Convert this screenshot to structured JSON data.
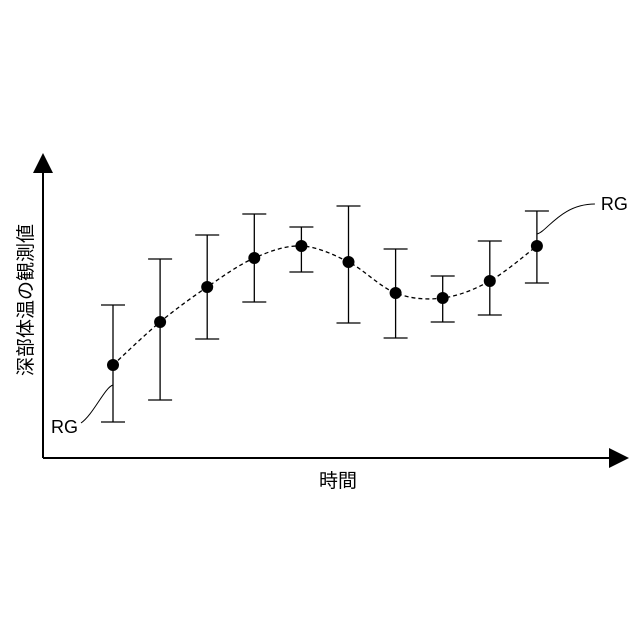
{
  "chart_data": {
    "type": "scatter",
    "xlabel": "時間",
    "ylabel": "深部体温の観測値",
    "grid": false,
    "points": [
      {
        "x": 1,
        "y": 57,
        "lo": 0,
        "hi": 117
      },
      {
        "x": 2,
        "y": 100,
        "lo": 22,
        "hi": 163
      },
      {
        "x": 3,
        "y": 135,
        "lo": 83,
        "hi": 187
      },
      {
        "x": 4,
        "y": 164,
        "lo": 120,
        "hi": 208
      },
      {
        "x": 5,
        "y": 176,
        "lo": 150,
        "hi": 195
      },
      {
        "x": 6,
        "y": 160,
        "lo": 99,
        "hi": 216
      },
      {
        "x": 7,
        "y": 129,
        "lo": 84,
        "hi": 173
      },
      {
        "x": 8,
        "y": 124,
        "lo": 100,
        "hi": 146
      },
      {
        "x": 9,
        "y": 141,
        "lo": 107,
        "hi": 181
      },
      {
        "x": 10,
        "y": 176,
        "lo": 139,
        "hi": 211
      }
    ],
    "trend": "dashed smooth curve through means",
    "annotations": [
      {
        "label": "RG",
        "point_index": 0
      },
      {
        "label": "RG",
        "point_index": 9
      }
    ]
  }
}
